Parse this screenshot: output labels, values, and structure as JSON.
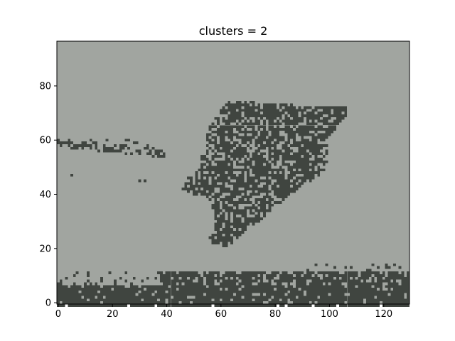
{
  "chart_data": {
    "type": "heatmap",
    "title": "clusters = 2",
    "xlabel": "",
    "ylabel": "",
    "xlim": [
      -0.5,
      129.5
    ],
    "ylim": [
      96.5,
      -0.5
    ],
    "x_ticks": [
      0,
      20,
      40,
      60,
      80,
      100,
      120
    ],
    "y_ticks": [
      0,
      20,
      40,
      60,
      80
    ],
    "image_width": 130,
    "image_height": 97,
    "colors": {
      "background": "#a1a5a0",
      "foreground": "#404540"
    },
    "clusters": 2
  }
}
